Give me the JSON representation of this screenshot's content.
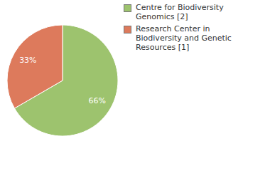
{
  "chart_data": {
    "type": "pie",
    "categories": [
      "Centre for Biodiversity Genomics [2]",
      "Research Center in Biodiversity and Genetic Resources [1]"
    ],
    "values": [
      66,
      33
    ],
    "value_labels": [
      "66%",
      "33%"
    ],
    "colors": [
      "#9dc36e",
      "#dd7a5c"
    ],
    "data_labels": true,
    "legend": "top right"
  }
}
